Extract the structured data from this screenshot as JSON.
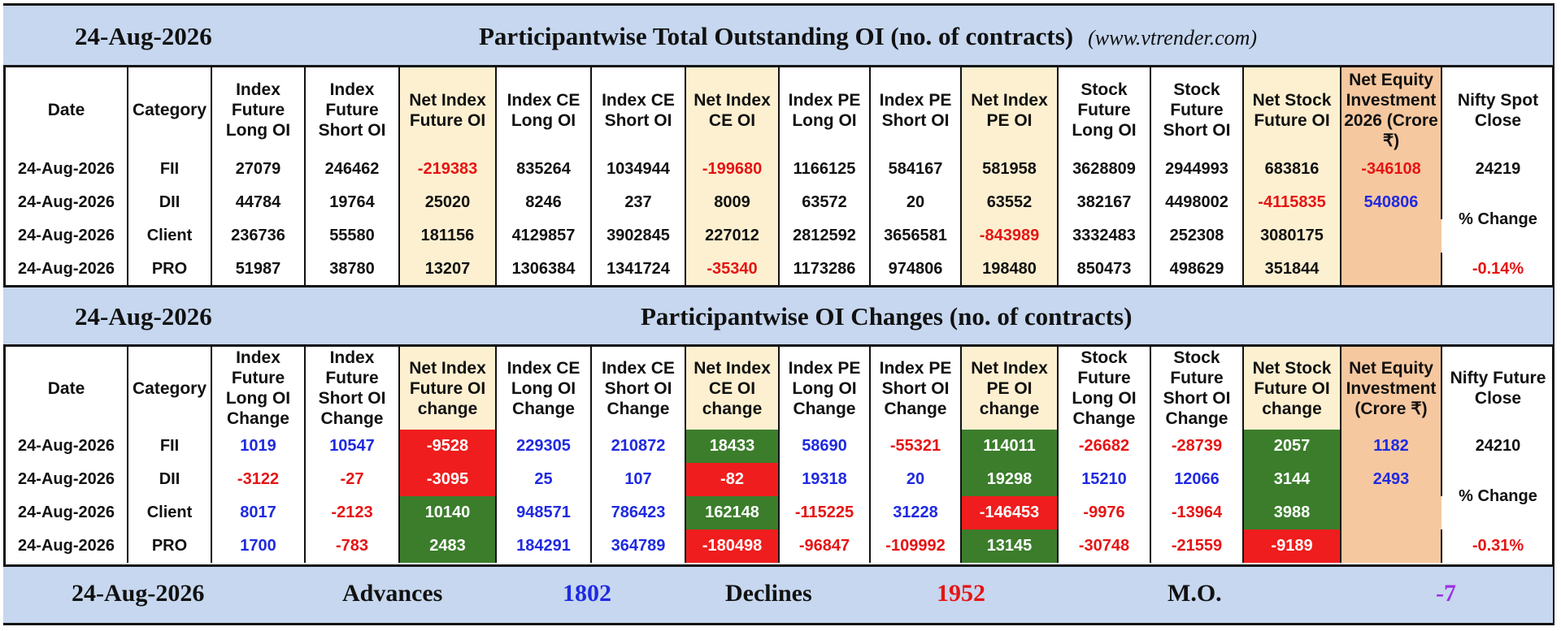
{
  "top": {
    "date": "24-Aug-2026",
    "title": "Participantwise Total Outstanding OI (no. of contracts)",
    "website": "(www.vtrender.com)",
    "headers": [
      "Date",
      "Category",
      "Index Future Long OI",
      "Index Future Short OI",
      "Net Index Future OI",
      "Index CE Long OI",
      "Index CE Short OI",
      "Net Index CE OI",
      "Index PE Long OI",
      "Index PE Short OI",
      "Net Index PE OI",
      "Stock Future Long OI",
      "Stock Future Short OI",
      "Net Stock Future OI",
      "Net Equity Investment 2026 (Crore ₹)",
      "Nifty Spot Close"
    ],
    "rows": [
      [
        "24-Aug-2026",
        "FII",
        "27079",
        "246462",
        "-219383",
        "835264",
        "1034944",
        "-199680",
        "1166125",
        "584167",
        "581958",
        "3628809",
        "2944993",
        "683816",
        "-346108"
      ],
      [
        "24-Aug-2026",
        "DII",
        "44784",
        "19764",
        "25020",
        "8246",
        "237",
        "8009",
        "63572",
        "20",
        "63552",
        "382167",
        "4498002",
        "-4115835",
        "540806"
      ],
      [
        "24-Aug-2026",
        "Client",
        "236736",
        "55580",
        "181156",
        "4129857",
        "3902845",
        "227012",
        "2812592",
        "3656581",
        "-843989",
        "3332483",
        "252308",
        "3080175",
        ""
      ],
      [
        "24-Aug-2026",
        "PRO",
        "51987",
        "38780",
        "13207",
        "1306384",
        "1341724",
        "-35340",
        "1173286",
        "974806",
        "198480",
        "850473",
        "498629",
        "351844",
        ""
      ]
    ],
    "spot_value": "24219",
    "pct_label": "% Change",
    "pct_value": "-0.14%"
  },
  "changes": {
    "date": "24-Aug-2026",
    "title": "Participantwise OI Changes (no. of contracts)",
    "headers": [
      "Date",
      "Category",
      "Index Future Long OI Change",
      "Index Future Short OI Change",
      "Net Index Future OI change",
      "Index CE Long OI Change",
      "Index CE Short OI Change",
      "Net Index CE OI change",
      "Index PE Long OI Change",
      "Index PE Short OI Change",
      "Net Index PE OI change",
      "Stock Future Long OI Change",
      "Stock Future Short OI Change",
      "Net Stock Future OI change",
      "Net Equity Investment (Crore ₹)",
      "Nifty Future Close"
    ],
    "rows": [
      [
        "24-Aug-2026",
        "FII",
        "1019",
        "10547",
        "-9528",
        "229305",
        "210872",
        "18433",
        "58690",
        "-55321",
        "114011",
        "-26682",
        "-28739",
        "2057",
        "1182"
      ],
      [
        "24-Aug-2026",
        "DII",
        "-3122",
        "-27",
        "-3095",
        "25",
        "107",
        "-82",
        "19318",
        "20",
        "19298",
        "15210",
        "12066",
        "3144",
        "2493"
      ],
      [
        "24-Aug-2026",
        "Client",
        "8017",
        "-2123",
        "10140",
        "948571",
        "786423",
        "162148",
        "-115225",
        "31228",
        "-146453",
        "-9976",
        "-13964",
        "3988",
        ""
      ],
      [
        "24-Aug-2026",
        "PRO",
        "1700",
        "-783",
        "2483",
        "184291",
        "364789",
        "-180498",
        "-96847",
        "-109992",
        "13145",
        "-30748",
        "-21559",
        "-9189",
        ""
      ]
    ],
    "future_value": "24210",
    "pct_label": "% Change",
    "pct_value": "-0.31%"
  },
  "footer": {
    "date": "24-Aug-2026",
    "advances_label": "Advances",
    "advances_value": "1802",
    "declines_label": "Declines",
    "declines_value": "1952",
    "mo_label": "M.O.",
    "mo_value": "-7"
  },
  "colors": {
    "banner_bg": "#c6d7ef",
    "net_column_bg": "#fdf0d0",
    "equity_column_bg": "#f6c8a0",
    "positive_blue": "#1f2ae0",
    "negative_red": "#e61414",
    "green_cell": "#3b7d2b",
    "red_cell": "#ef1d1d"
  }
}
